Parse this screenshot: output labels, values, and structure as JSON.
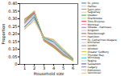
{
  "chart_data": {
    "type": "line",
    "xlabel": "Household size",
    "ylabel": "Proportion",
    "x": [
      1,
      2,
      3,
      4,
      5,
      6
    ],
    "xlim": [
      0.5,
      6.5
    ],
    "ylim": [
      0,
      0.4
    ],
    "xticks": [
      1,
      2,
      3,
      4,
      5,
      6
    ],
    "yticks": [
      0,
      0.05,
      {
        "value": 0.1,
        "label": "0.10"
      },
      0.15,
      {
        "value": 0.2,
        "label": "0.20"
      },
      0.25,
      {
        "value": 0.3,
        "label": "0.30"
      },
      0.35,
      {
        "value": 0.4,
        "label": "0.40"
      }
    ],
    "legend": "right",
    "series": [
      {
        "name": "St. Johns",
        "color": "#1f77b4",
        "values": [
          0.284,
          0.339,
          0.16,
          0.119,
          0.063,
          0.03
        ]
      },
      {
        "name": "Halifax",
        "color": "#aec7e8",
        "values": [
          0.276,
          0.339,
          0.163,
          0.121,
          0.064,
          0.028
        ]
      },
      {
        "name": "Saint John",
        "color": "#ff7f0e",
        "values": [
          0.271,
          0.338,
          0.162,
          0.124,
          0.068,
          0.03
        ]
      },
      {
        "name": "Saguenay",
        "color": "#ffbb78",
        "values": [
          0.285,
          0.331,
          0.155,
          0.118,
          0.062,
          0.028
        ]
      },
      {
        "name": "Quebec",
        "color": "#2ca02c",
        "values": [
          0.296,
          0.34,
          0.154,
          0.113,
          0.058,
          0.025
        ]
      },
      {
        "name": "Sherbrooke",
        "color": "#98df8a",
        "values": [
          0.285,
          0.338,
          0.16,
          0.12,
          0.064,
          0.028
        ]
      },
      {
        "name": "Trois-Rivieres",
        "color": "#d62728",
        "values": [
          0.298,
          0.344,
          0.153,
          0.111,
          0.057,
          0.025
        ]
      },
      {
        "name": "Montreal",
        "color": "#ff9896",
        "values": [
          0.302,
          0.31,
          0.163,
          0.12,
          0.067,
          0.033
        ]
      },
      {
        "name": "Ottawa - Gatineau",
        "color": "#9467bd",
        "values": [
          0.273,
          0.334,
          0.163,
          0.126,
          0.071,
          0.028
        ]
      },
      {
        "name": "Kingston",
        "color": "#c5b0d5",
        "values": [
          0.28,
          0.345,
          0.159,
          0.118,
          0.062,
          0.027
        ]
      },
      {
        "name": "Peterborough",
        "color": "#8c564b",
        "values": [
          0.285,
          0.352,
          0.157,
          0.113,
          0.059,
          0.025
        ]
      },
      {
        "name": "Hamilton",
        "color": "#c49c94",
        "values": [
          0.264,
          0.331,
          0.166,
          0.13,
          0.072,
          0.031
        ]
      },
      {
        "name": "St. Catharines-Niagara",
        "color": "#e377c2",
        "values": [
          0.274,
          0.346,
          0.16,
          0.119,
          0.063,
          0.028
        ]
      },
      {
        "name": "Kitchener",
        "color": "#f7b6d2",
        "values": [
          0.253,
          0.32,
          0.172,
          0.14,
          0.08,
          0.033
        ]
      },
      {
        "name": "London",
        "color": "#7f7f7f",
        "values": [
          0.273,
          0.339,
          0.165,
          0.124,
          0.067,
          0.028
        ]
      },
      {
        "name": "Windsor",
        "color": "#c7c7c7",
        "values": [
          0.268,
          0.324,
          0.168,
          0.133,
          0.074,
          0.031
        ]
      },
      {
        "name": "Greater Sudbury",
        "color": "#bcbd22",
        "values": [
          0.286,
          0.352,
          0.158,
          0.114,
          0.06,
          0.026
        ]
      },
      {
        "name": "Thunder Bay",
        "color": "#dbdb8d",
        "values": [
          0.3,
          0.354,
          0.153,
          0.108,
          0.055,
          0.024
        ]
      },
      {
        "name": "Winnipeg",
        "color": "#17becf",
        "values": [
          0.248,
          0.32,
          0.173,
          0.143,
          0.082,
          0.034
        ]
      },
      {
        "name": "Regina",
        "color": "#9edae5",
        "values": [
          0.252,
          0.312,
          0.175,
          0.147,
          0.085,
          0.035
        ]
      },
      {
        "name": "Saskatoon",
        "color": "#393b79",
        "values": [
          0.246,
          0.31,
          0.178,
          0.15,
          0.088,
          0.036
        ]
      },
      {
        "name": "Calgary",
        "color": "#6b6ecf",
        "values": [
          0.232,
          0.296,
          0.18,
          0.162,
          0.098,
          0.04
        ]
      },
      {
        "name": "Edmonton",
        "color": "#b5cf6b",
        "values": [
          0.241,
          0.299,
          0.178,
          0.158,
          0.094,
          0.038
        ]
      },
      {
        "name": "Vancouver",
        "color": "#e7ba52",
        "values": [
          0.236,
          0.282,
          0.175,
          0.165,
          0.103,
          0.042
        ]
      }
    ]
  }
}
